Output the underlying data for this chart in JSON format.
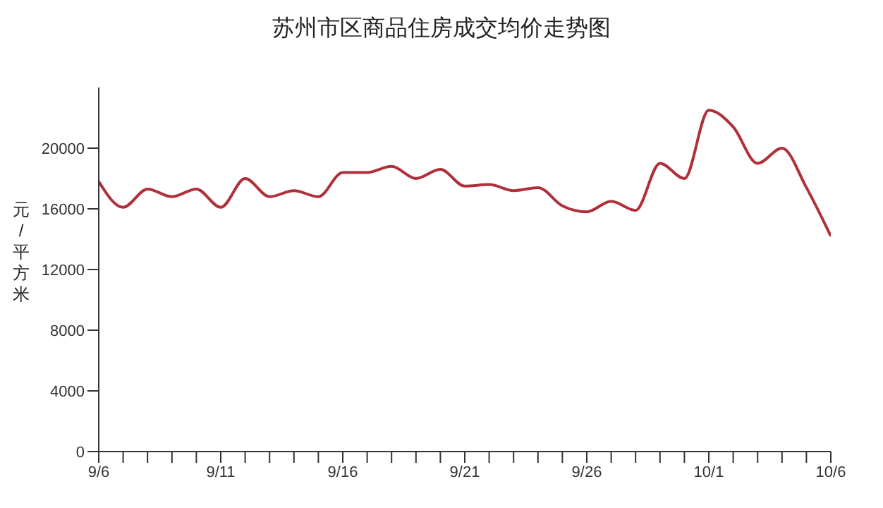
{
  "chart_data": {
    "type": "line",
    "title": "苏州市区商品住房成交均价走势图",
    "ylabel": "元/平方米",
    "categories": [
      "9/6",
      null,
      null,
      null,
      null,
      "9/11",
      null,
      null,
      null,
      null,
      "9/16",
      null,
      null,
      null,
      null,
      "9/21",
      null,
      null,
      null,
      null,
      "9/26",
      null,
      null,
      null,
      null,
      "10/1",
      null,
      null,
      null,
      null,
      "10/6"
    ],
    "series": [
      {
        "color": "#b0303a",
        "values": [
          17800,
          16100,
          17300,
          16800,
          17300,
          16100,
          18000,
          16800,
          17200,
          16800,
          18400,
          18400,
          18800,
          18000,
          18600,
          17500,
          17600,
          17200,
          17400,
          16200,
          15800,
          16500,
          15900,
          19000,
          18000,
          22500,
          21400,
          19000,
          20000,
          17400,
          14200
        ]
      }
    ],
    "ylim": [
      0,
      24000
    ],
    "yticks": [
      0,
      4000,
      8000,
      12000,
      16000,
      20000
    ],
    "grid": false,
    "legend": false,
    "marker": "none",
    "line_style": "solid"
  }
}
